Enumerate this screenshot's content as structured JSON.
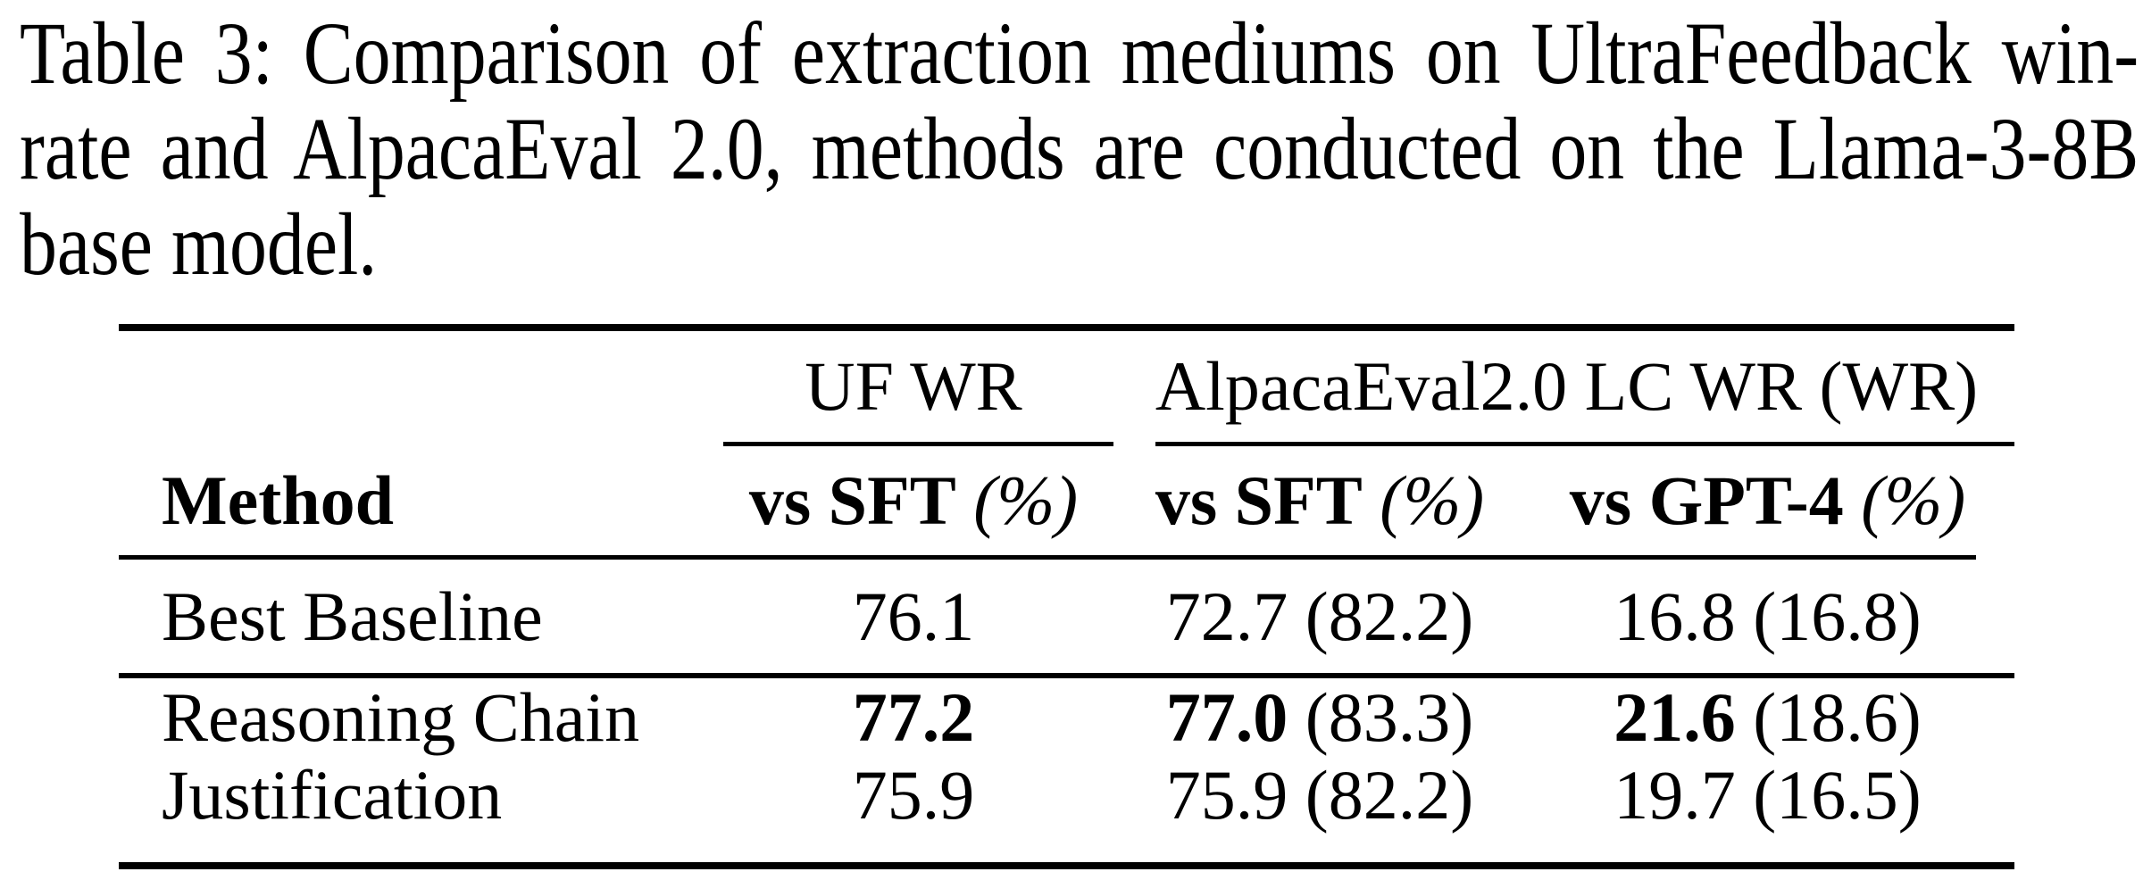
{
  "page": {
    "background_color": "#ffffff",
    "text_color": "#000000",
    "rule_color": "#000000"
  },
  "caption": {
    "lines": [
      "Table 3: Comparison of extraction mediums on UltraFeedback win-",
      "rate and AlpacaEval 2.0, methods are conducted on the Llama-3-8B",
      "base model."
    ]
  },
  "table": {
    "group_headers": [
      {
        "label": "UF WR"
      },
      {
        "label": "AlpacaEval2.0 LC WR (WR)"
      }
    ],
    "columns": [
      {
        "label": "Method"
      },
      {
        "bold_part": "vs SFT",
        "suffix": "(%)"
      },
      {
        "bold_part": "vs SFT",
        "suffix": "(%)"
      },
      {
        "bold_part": "vs GPT-4",
        "suffix": "(%)"
      }
    ],
    "rows": [
      {
        "method": "Best Baseline",
        "cells": [
          {
            "main": "76.1",
            "bold": false,
            "paren": ""
          },
          {
            "main": "72.7",
            "bold": false,
            "paren": "(82.2)"
          },
          {
            "main": "16.8",
            "bold": false,
            "paren": "(16.8)"
          }
        ]
      },
      {
        "method": "Reasoning Chain",
        "cells": [
          {
            "main": "77.2",
            "bold": true,
            "paren": ""
          },
          {
            "main": "77.0",
            "bold": true,
            "paren": "(83.3)"
          },
          {
            "main": "21.6",
            "bold": true,
            "paren": "(18.6)"
          }
        ]
      },
      {
        "method": "Justification",
        "cells": [
          {
            "main": "75.9",
            "bold": false,
            "paren": ""
          },
          {
            "main": "75.9",
            "bold": false,
            "paren": "(82.2)"
          },
          {
            "main": "19.7",
            "bold": false,
            "paren": "(16.5)"
          }
        ]
      }
    ]
  }
}
